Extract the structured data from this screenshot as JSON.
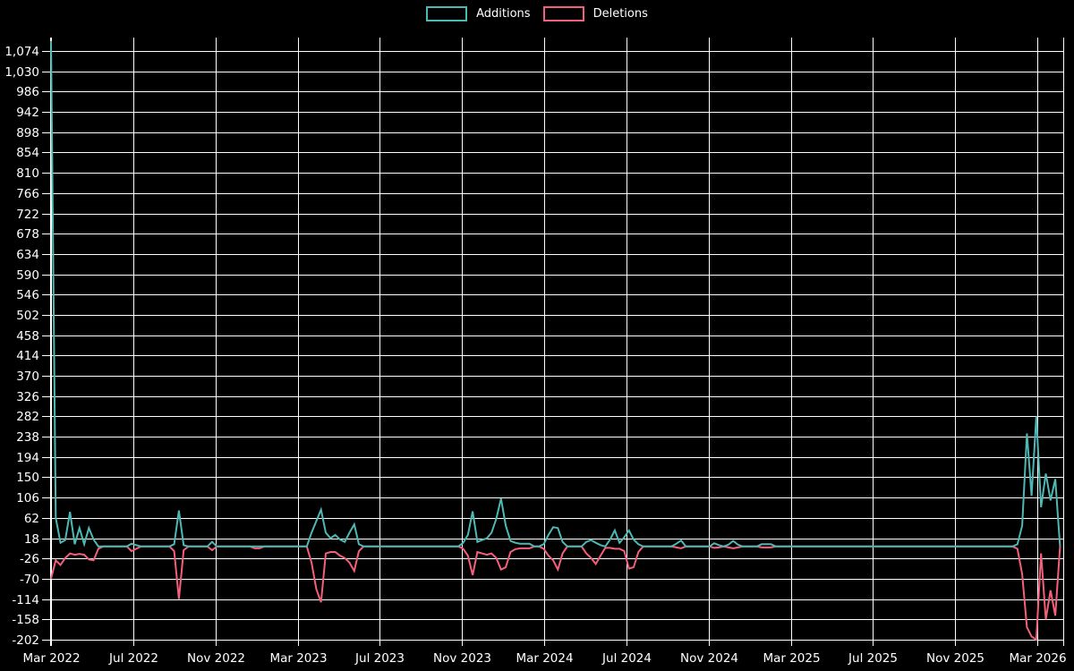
{
  "legend": {
    "items": [
      {
        "label": "Additions",
        "color": "#4db8b4"
      },
      {
        "label": "Deletions",
        "color": "#f45f7a"
      }
    ]
  },
  "colors": {
    "background": "#000000",
    "grid": "#ffffff",
    "text": "#ffffff",
    "additions": "#4db8b4",
    "deletions": "#f45f7a"
  },
  "chart_data": {
    "type": "line",
    "title": "",
    "xlabel": "",
    "ylabel": "",
    "grid": true,
    "legend_position": "top-center",
    "x_unit": "week",
    "x_tick_labels": [
      "Mar 2022",
      "Jul 2022",
      "Nov 2022",
      "Mar 2023",
      "Jul 2023",
      "Nov 2023",
      "Mar 2024",
      "Jul 2024",
      "Nov 2024",
      "Mar 2025",
      "Jul 2025",
      "Nov 2025",
      "Mar 2026"
    ],
    "y_ticks": [
      1074,
      1030,
      986,
      942,
      898,
      854,
      810,
      766,
      722,
      678,
      634,
      590,
      546,
      502,
      458,
      414,
      370,
      326,
      282,
      238,
      194,
      150,
      106,
      62,
      18,
      -26,
      -70,
      -114,
      -158,
      -202
    ],
    "y_tick_labels": [
      "1,074",
      "1,030",
      "986",
      "942",
      "898",
      "854",
      "810",
      "766",
      "722",
      "678",
      "634",
      "590",
      "546",
      "502",
      "458",
      "414",
      "370",
      "326",
      "282",
      "238",
      "194",
      "150",
      "106",
      "62",
      "18",
      "-26",
      "-70",
      "-114",
      "-158",
      "-202"
    ],
    "ylim": [
      -202,
      1102
    ],
    "weeks_per_tick_interval": 17.35,
    "series": [
      {
        "name": "Additions",
        "color": "#4db8b4",
        "values": [
          1096,
          62,
          8,
          14,
          75,
          5,
          40,
          5,
          40,
          15,
          0,
          0,
          0,
          0,
          0,
          0,
          0,
          6,
          3,
          0,
          0,
          0,
          0,
          0,
          0,
          0,
          5,
          78,
          3,
          0,
          0,
          0,
          0,
          0,
          10,
          0,
          0,
          0,
          0,
          0,
          0,
          0,
          0,
          0,
          0,
          0,
          0,
          0,
          0,
          0,
          0,
          0,
          0,
          0,
          0,
          30,
          55,
          80,
          30,
          18,
          25,
          15,
          10,
          30,
          48,
          5,
          0,
          0,
          0,
          0,
          0,
          0,
          0,
          0,
          0,
          0,
          0,
          0,
          0,
          0,
          0,
          0,
          0,
          0,
          0,
          0,
          0,
          8,
          25,
          76,
          10,
          14,
          18,
          30,
          60,
          104,
          45,
          12,
          8,
          6,
          6,
          6,
          0,
          0,
          5,
          25,
          42,
          40,
          10,
          0,
          0,
          0,
          0,
          10,
          14,
          8,
          3,
          0,
          15,
          35,
          8,
          20,
          35,
          15,
          5,
          0,
          0,
          0,
          0,
          0,
          0,
          0,
          6,
          13,
          0,
          0,
          0,
          0,
          0,
          0,
          7,
          3,
          0,
          4,
          12,
          4,
          0,
          0,
          0,
          0,
          5,
          5,
          5,
          0,
          0,
          0,
          0,
          0,
          0,
          0,
          0,
          0,
          0,
          0,
          0,
          0,
          0,
          0,
          0,
          0,
          0,
          0,
          0,
          0,
          0,
          0,
          0,
          0,
          0,
          0,
          0,
          0,
          0,
          0,
          0,
          0,
          0,
          0,
          0,
          0,
          0,
          0,
          0,
          0,
          0,
          0,
          0,
          0,
          0,
          0,
          0,
          0,
          0,
          0,
          5,
          45,
          245,
          110,
          282,
          85,
          158,
          100,
          146,
          0
        ]
      },
      {
        "name": "Deletions",
        "color": "#f45f7a",
        "values": [
          -70,
          -30,
          -40,
          -25,
          -15,
          -18,
          -16,
          -18,
          -28,
          -30,
          -5,
          0,
          0,
          0,
          0,
          0,
          0,
          -10,
          -5,
          0,
          0,
          0,
          0,
          0,
          0,
          0,
          -10,
          -114,
          -8,
          0,
          0,
          0,
          0,
          0,
          -8,
          0,
          0,
          0,
          0,
          0,
          0,
          0,
          0,
          -4,
          -4,
          0,
          0,
          0,
          0,
          0,
          0,
          0,
          0,
          0,
          0,
          -35,
          -92,
          -121,
          -15,
          -12,
          -12,
          -20,
          -25,
          -35,
          -53,
          -10,
          0,
          0,
          0,
          0,
          0,
          0,
          0,
          0,
          0,
          0,
          0,
          0,
          0,
          0,
          0,
          0,
          0,
          0,
          0,
          0,
          0,
          -5,
          -20,
          -62,
          -12,
          -15,
          -18,
          -15,
          -25,
          -50,
          -45,
          -12,
          -6,
          -4,
          -4,
          -4,
          0,
          0,
          -5,
          -20,
          -30,
          -50,
          -15,
          0,
          0,
          0,
          0,
          -15,
          -25,
          -38,
          -20,
          -3,
          -3,
          -5,
          -5,
          -10,
          -48,
          -45,
          -12,
          0,
          0,
          0,
          0,
          0,
          0,
          0,
          -2,
          -4,
          0,
          0,
          0,
          0,
          0,
          0,
          -3,
          -2,
          0,
          -2,
          -4,
          -2,
          0,
          0,
          0,
          0,
          -2,
          -2,
          -2,
          0,
          0,
          0,
          0,
          0,
          0,
          0,
          0,
          0,
          0,
          0,
          0,
          0,
          0,
          0,
          0,
          0,
          0,
          0,
          0,
          0,
          0,
          0,
          0,
          0,
          0,
          0,
          0,
          0,
          0,
          0,
          0,
          0,
          0,
          0,
          0,
          0,
          0,
          0,
          0,
          0,
          0,
          0,
          0,
          0,
          0,
          0,
          0,
          0,
          0,
          0,
          -5,
          -60,
          -175,
          -195,
          -202,
          -15,
          -158,
          -95,
          -150,
          0
        ]
      }
    ]
  }
}
